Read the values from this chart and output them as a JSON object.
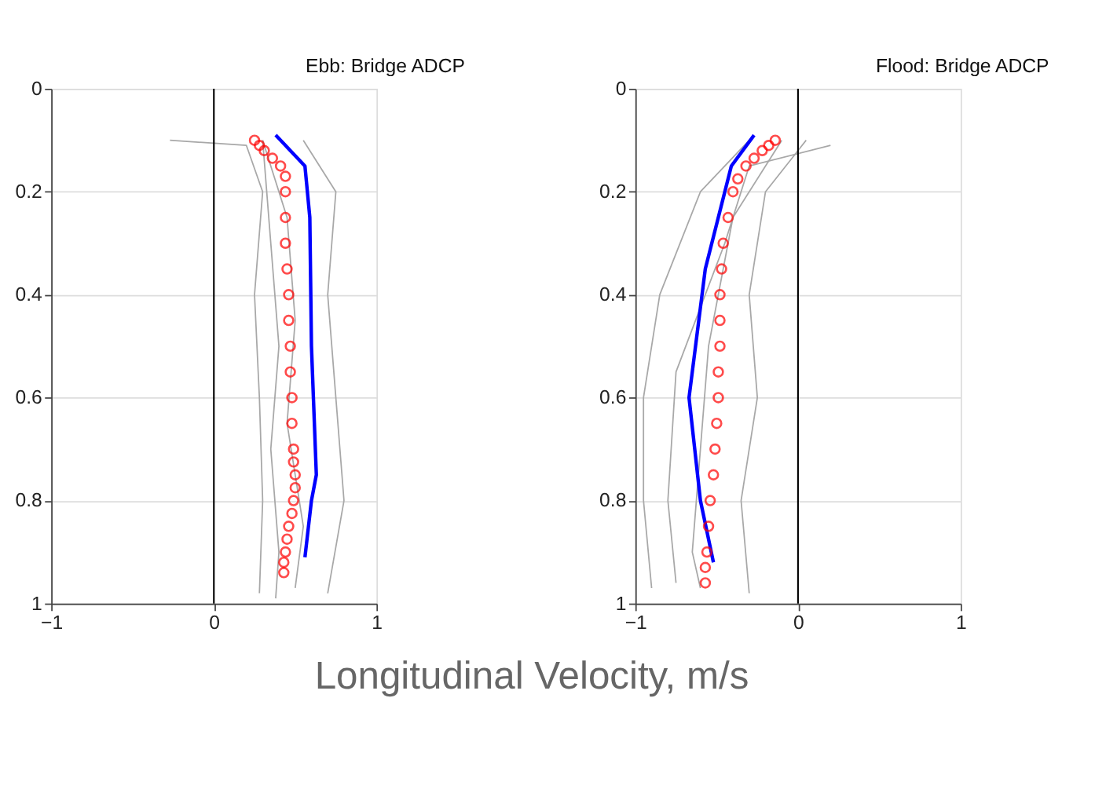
{
  "chart_data": [
    {
      "type": "line",
      "title": "Ebb: Bridge ADCP",
      "xlabel": "Longitudinal Velocity, m/s",
      "xlim": [
        -1,
        1
      ],
      "xticks": [
        -1,
        0,
        1
      ],
      "ylim": [
        1,
        0
      ],
      "yticks": [
        0,
        0.2,
        0.4,
        0.6,
        0.8,
        1
      ],
      "grid": "y",
      "ref_lines": [
        {
          "axis": "x",
          "value": 0,
          "color": "#000000"
        }
      ],
      "series": [
        {
          "color": "#a8a8a8",
          "x": [
            -0.27,
            0.2,
            0.3,
            0.25,
            0.28,
            0.3,
            0.28
          ],
          "values": [
            0.1,
            0.11,
            0.2,
            0.4,
            0.6,
            0.8,
            0.98
          ]
        },
        {
          "color": "#a8a8a8",
          "x": [
            0.55,
            0.75,
            0.7,
            0.75,
            0.8,
            0.7
          ],
          "values": [
            0.1,
            0.2,
            0.4,
            0.6,
            0.8,
            0.98
          ]
        },
        {
          "color": "#a8a8a8",
          "x": [
            0.3,
            0.45,
            0.5,
            0.45,
            0.55,
            0.5
          ],
          "values": [
            0.1,
            0.25,
            0.45,
            0.65,
            0.85,
            0.97
          ]
        },
        {
          "color": "#a8a8a8",
          "x": [
            0.3,
            0.35,
            0.4,
            0.35,
            0.4,
            0.38
          ],
          "values": [
            0.1,
            0.3,
            0.5,
            0.7,
            0.9,
            0.99
          ]
        },
        {
          "color": "#0000ff",
          "x": [
            0.38,
            0.56,
            0.59,
            0.6,
            0.63,
            0.6,
            0.56
          ],
          "values": [
            0.09,
            0.15,
            0.25,
            0.5,
            0.75,
            0.8,
            0.91
          ]
        },
        {
          "type": "scatter",
          "marker": "circle",
          "color": "#ff0000",
          "x": [
            0.25,
            0.28,
            0.31,
            0.36,
            0.41,
            0.44,
            0.44,
            0.44,
            0.44,
            0.45,
            0.46,
            0.46,
            0.47,
            0.47,
            0.48,
            0.48,
            0.49,
            0.49,
            0.5,
            0.5,
            0.49,
            0.48,
            0.46,
            0.45,
            0.44,
            0.43,
            0.43
          ],
          "values": [
            0.1,
            0.11,
            0.12,
            0.135,
            0.15,
            0.17,
            0.2,
            0.25,
            0.3,
            0.35,
            0.4,
            0.45,
            0.5,
            0.55,
            0.6,
            0.65,
            0.7,
            0.725,
            0.75,
            0.775,
            0.8,
            0.825,
            0.85,
            0.875,
            0.9,
            0.92,
            0.94
          ]
        }
      ]
    },
    {
      "type": "line",
      "title": "Flood: Bridge ADCP",
      "xlim": [
        -1,
        1
      ],
      "xticks": [
        -1,
        0,
        1
      ],
      "ylim": [
        1,
        0
      ],
      "yticks": [
        0,
        0.2,
        0.4,
        0.6,
        0.8,
        1
      ],
      "grid": "y",
      "ref_lines": [
        {
          "axis": "x",
          "value": 0,
          "color": "#000000"
        }
      ],
      "series": [
        {
          "color": "#a8a8a8",
          "x": [
            -0.3,
            -0.6,
            -0.85,
            -0.95,
            -0.95,
            -0.9
          ],
          "values": [
            0.1,
            0.2,
            0.4,
            0.6,
            0.8,
            0.97
          ]
        },
        {
          "color": "#a8a8a8",
          "x": [
            0.05,
            -0.2,
            -0.3,
            -0.25,
            -0.35,
            -0.3
          ],
          "values": [
            0.1,
            0.2,
            0.4,
            0.6,
            0.8,
            0.98
          ]
        },
        {
          "color": "#a8a8a8",
          "x": [
            -0.1,
            -0.4,
            -0.55,
            -0.6,
            -0.65,
            -0.6
          ],
          "values": [
            0.1,
            0.25,
            0.5,
            0.7,
            0.9,
            0.97
          ]
        },
        {
          "color": "#a8a8a8",
          "x": [
            0.2,
            -0.3,
            -0.45,
            -0.75,
            -0.8,
            -0.75
          ],
          "values": [
            0.11,
            0.15,
            0.3,
            0.55,
            0.8,
            0.96
          ]
        },
        {
          "color": "#0000ff",
          "x": [
            -0.27,
            -0.41,
            -0.57,
            -0.67,
            -0.6,
            -0.52
          ],
          "values": [
            0.09,
            0.15,
            0.35,
            0.6,
            0.8,
            0.92
          ]
        },
        {
          "type": "scatter",
          "marker": "circle",
          "color": "#ff0000",
          "x": [
            -0.14,
            -0.18,
            -0.22,
            -0.27,
            -0.32,
            -0.37,
            -0.4,
            -0.43,
            -0.46,
            -0.47,
            -0.48,
            -0.48,
            -0.48,
            -0.49,
            -0.49,
            -0.5,
            -0.51,
            -0.52,
            -0.54,
            -0.55,
            -0.56,
            -0.57,
            -0.57
          ],
          "values": [
            0.1,
            0.11,
            0.12,
            0.135,
            0.15,
            0.175,
            0.2,
            0.25,
            0.3,
            0.35,
            0.4,
            0.45,
            0.5,
            0.55,
            0.6,
            0.65,
            0.7,
            0.75,
            0.8,
            0.85,
            0.9,
            0.93,
            0.96
          ]
        }
      ]
    }
  ]
}
